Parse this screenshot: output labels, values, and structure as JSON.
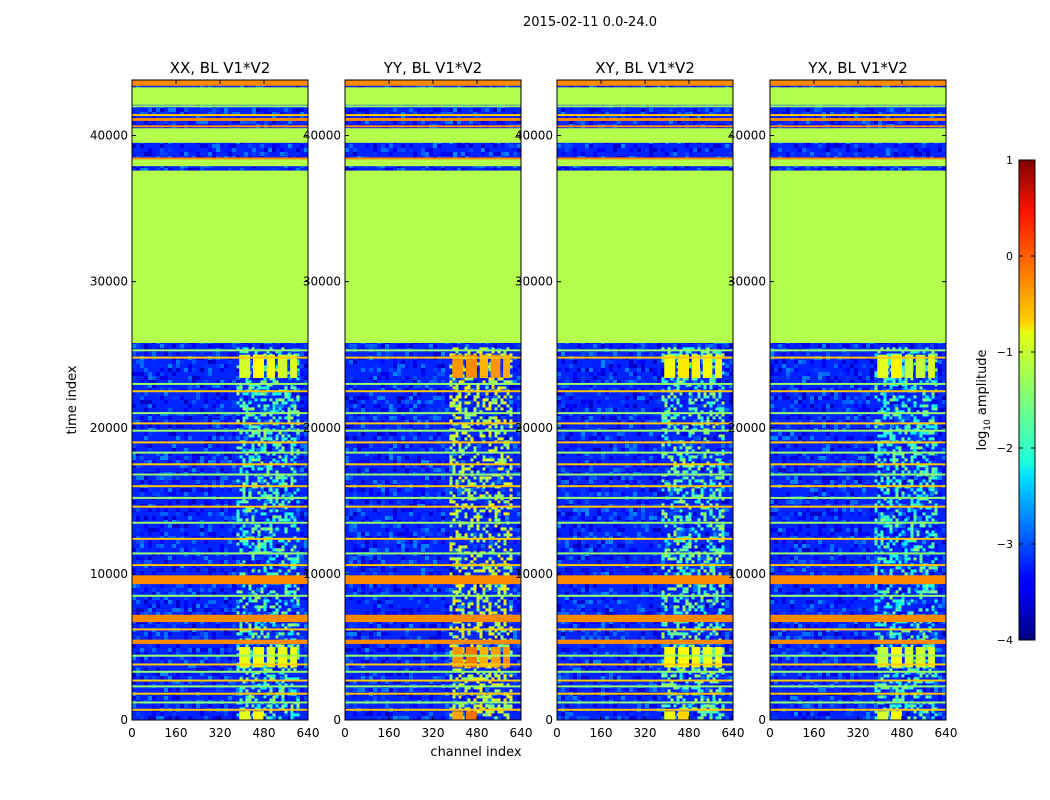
{
  "chart_data": {
    "type": "heatmap",
    "suptitle": "2015-02-11 0.0-24.0",
    "xlabel": "channel index",
    "ylabel": "time index",
    "x_range": [
      0,
      640
    ],
    "y_range": [
      0,
      43800
    ],
    "xticks": [
      0,
      160,
      320,
      480,
      640
    ],
    "yticks": [
      0,
      10000,
      20000,
      30000,
      40000
    ],
    "xtick_labels": [
      "0",
      "160",
      "320",
      "480",
      "640"
    ],
    "ytick_labels": [
      "0",
      "10000",
      "20000",
      "30000",
      "40000"
    ],
    "panels": [
      {
        "id": "xx",
        "title": "XX, BL V1*V2",
        "rfi_level": -1.0
      },
      {
        "id": "yy",
        "title": "YY, BL V1*V2",
        "rfi_level": -0.4
      },
      {
        "id": "xy",
        "title": "XY, BL V1*V2",
        "rfi_level": -0.9
      },
      {
        "id": "yx",
        "title": "YX, BL V1*V2",
        "rfi_level": -1.1
      }
    ],
    "colorbar": {
      "label": "log10 amplitude",
      "label_main": "log",
      "label_sub": "10",
      "label_tail": " amplitude",
      "range": [
        -4,
        1
      ],
      "ticks": [
        1,
        0,
        -1,
        -2,
        -3,
        -4
      ],
      "tick_labels": [
        "1",
        "0",
        "−1",
        "−2",
        "−3",
        "−4"
      ],
      "colormap": "jet"
    },
    "structure": {
      "background_level": -3.2,
      "flagged_level": -1.25,
      "flagged_blocks": [
        [
          25800,
          37600
        ],
        [
          37900,
          38400
        ],
        [
          39500,
          40500
        ],
        [
          42100,
          43300
        ]
      ],
      "high_bands": [
        [
          9300,
          9900
        ],
        [
          6700,
          7200
        ],
        [
          5200,
          5500
        ],
        [
          43400,
          43800
        ],
        [
          41000,
          41200
        ],
        [
          40600,
          40700
        ],
        [
          38400,
          38500
        ]
      ],
      "thin_lines": [
        700,
        1200,
        1800,
        2300,
        2700,
        3300,
        3800,
        4400,
        6200,
        8500,
        10600,
        11400,
        12400,
        13500,
        14600,
        15200,
        16000,
        16800,
        17500,
        18300,
        19000,
        19800,
        20300,
        21000,
        22500,
        23000,
        24800,
        25300,
        41400,
        42000,
        43200
      ],
      "rfi_channel_range": [
        380,
        600
      ],
      "rfi_bursts": [
        [
          23400,
          25000
        ],
        [
          3600,
          5000
        ],
        [
          0,
          600
        ]
      ]
    }
  }
}
